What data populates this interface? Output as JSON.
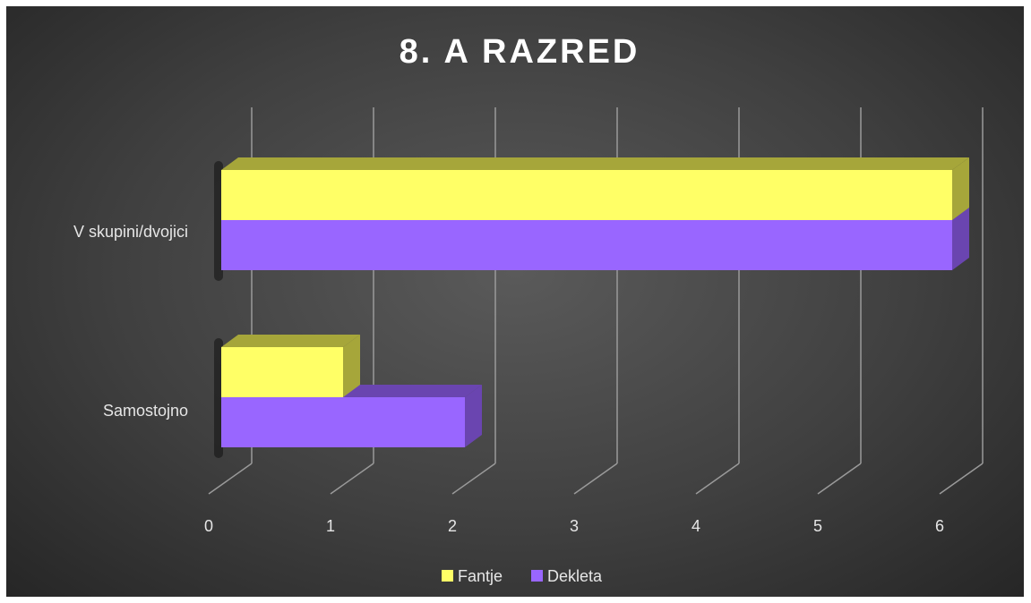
{
  "chart_data": {
    "type": "bar",
    "orientation": "horizontal",
    "title": "8. A RAZRED",
    "categories": [
      "V skupini/dvojici",
      "Samostojno"
    ],
    "series": [
      {
        "name": "Fantje",
        "values": [
          6,
          1
        ],
        "color": "#ffff66",
        "side_color": "#a6a63a"
      },
      {
        "name": "Dekleta",
        "values": [
          6,
          2
        ],
        "color": "#9966ff",
        "side_color": "#6a45b0"
      }
    ],
    "x_ticks": [
      "0",
      "1",
      "2",
      "3",
      "4",
      "5",
      "6"
    ],
    "xlim": [
      0,
      6
    ],
    "grid": true,
    "legend": "bottom",
    "style": "3d-clustered-bar"
  }
}
